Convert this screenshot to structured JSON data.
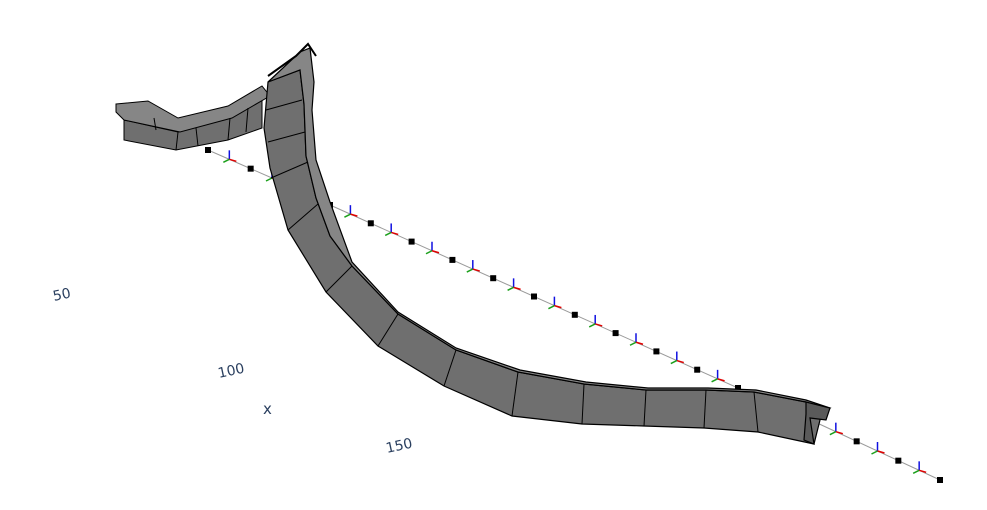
{
  "chart_data": {
    "type": "3d-mesh",
    "xaxis": {
      "title": "x",
      "ticks": [
        50,
        100,
        150
      ]
    },
    "colors": {
      "mesh_fill": "#6f6f6f",
      "mesh_fill_light": "#868686",
      "mesh_edge": "#000000",
      "beam_line": "#9a9a9a",
      "node_marker": "#000000",
      "triad_x": "#e00000",
      "triad_y": "#1ca01c",
      "triad_z": "#1010e0",
      "tick_text": "#2a3f5f"
    },
    "beam_nodes": 32,
    "mesh_segments": 20
  }
}
